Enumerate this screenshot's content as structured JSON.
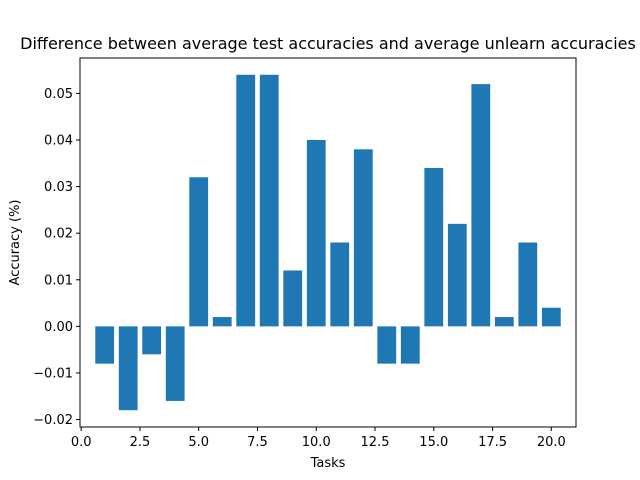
{
  "chart_data": {
    "type": "bar",
    "title": "Difference between average test accuracies and average unlearn accuracies",
    "xlabel": "Tasks",
    "ylabel": "Accuracy (%)",
    "x": [
      1,
      2,
      3,
      4,
      5,
      6,
      7,
      8,
      9,
      10,
      11,
      12,
      13,
      14,
      15,
      16,
      17,
      18,
      19,
      20
    ],
    "values": [
      -0.008,
      -0.018,
      -0.006,
      -0.016,
      0.032,
      0.002,
      0.054,
      0.054,
      0.012,
      0.04,
      0.018,
      0.038,
      -0.008,
      -0.008,
      0.034,
      0.022,
      0.052,
      0.002,
      0.018,
      0.004
    ],
    "xlim": [
      -0.05,
      21.05
    ],
    "ylim": [
      -0.0216,
      0.0576
    ],
    "xticks": [
      0.0,
      2.5,
      5.0,
      7.5,
      10.0,
      12.5,
      15.0,
      17.5,
      20.0
    ],
    "xtick_labels": [
      "0.0",
      "2.5",
      "5.0",
      "7.5",
      "10.0",
      "12.5",
      "15.0",
      "17.5",
      "20.0"
    ],
    "yticks": [
      -0.02,
      -0.01,
      0.0,
      0.01,
      0.02,
      0.03,
      0.04,
      0.05
    ],
    "ytick_labels": [
      "−0.02",
      "−0.01",
      "0.00",
      "0.01",
      "0.02",
      "0.03",
      "0.04",
      "0.05"
    ],
    "bar_width": 0.8,
    "bar_color": "#1f77b4",
    "grid": false,
    "legend": false
  }
}
